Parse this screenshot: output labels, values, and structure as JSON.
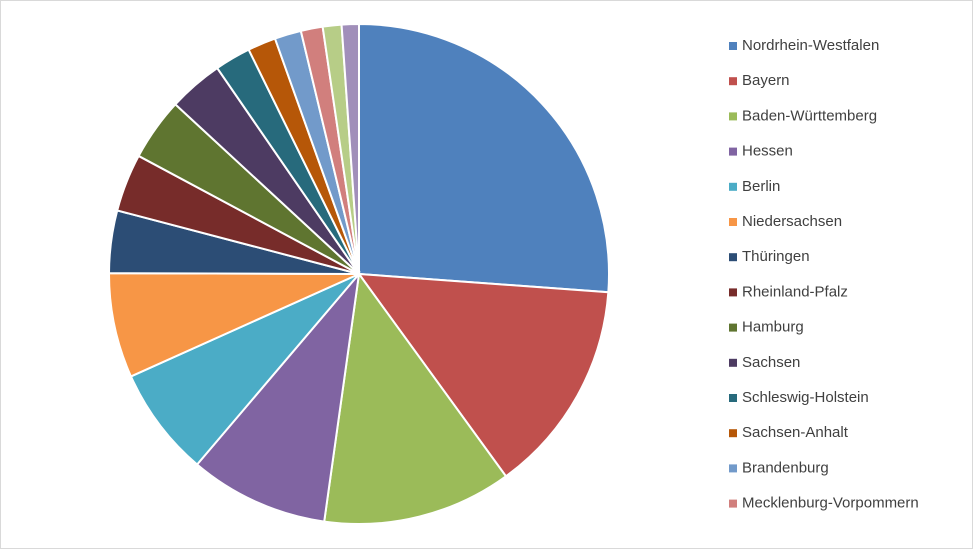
{
  "chart_data": {
    "type": "pie",
    "categories": [
      "Nordrhein-Westfalen",
      "Bayern",
      "Baden-Württemberg",
      "Hessen",
      "Berlin",
      "Niedersachsen",
      "Thüringen",
      "Rheinland-Pfalz",
      "Hamburg",
      "Sachsen",
      "Schleswig-Holstein",
      "Sachsen-Anhalt",
      "Brandenburg",
      "Mecklenburg-Vorpommern",
      null,
      null
    ],
    "values": [
      25.9,
      13.7,
      12.1,
      8.9,
      7.0,
      6.7,
      4.0,
      3.7,
      4.0,
      3.5,
      2.3,
      1.8,
      1.7,
      1.4,
      1.2,
      1.1
    ],
    "colors": [
      "#4f81bd",
      "#c0504d",
      "#9bbb59",
      "#8064a2",
      "#4bacc6",
      "#f79646",
      "#2c4d75",
      "#772c2a",
      "#5f7530",
      "#4d3b62",
      "#276a7c",
      "#b65708",
      "#729aca",
      "#d17f7d",
      "#b7cd87",
      "#a18fba"
    ],
    "legend": "right"
  }
}
